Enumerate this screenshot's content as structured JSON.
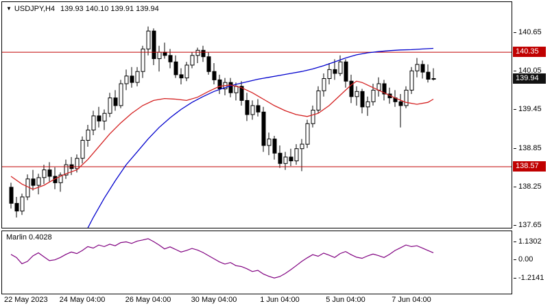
{
  "header": {
    "marker": "▼",
    "symbol_period": "USDJPY,H4",
    "ohlc": "139.93 140.10 139.91 139.94"
  },
  "indicator_header": {
    "name": "Marlin",
    "value": "0.4028"
  },
  "chart_data": {
    "type": "candlestick",
    "symbol": "USDJPY",
    "timeframe": "H4",
    "style": {
      "bull_color": "#ffffff",
      "bear_color": "#000000",
      "wick_color": "#000000",
      "level_color": "#c00000",
      "level_badge_bg": "#c00000",
      "price_badge_bg": "#111111",
      "ma_fast_color": "#d42020",
      "ma_slow_color": "#0000cd",
      "indicator_color": "#800080"
    },
    "y_axis": {
      "min": 137.62,
      "max": 141.13,
      "ticks": [
        140.65,
        140.05,
        139.45,
        138.85,
        138.25,
        137.65
      ]
    },
    "x_ticks": [
      {
        "i": 0,
        "label": "22 May 2023"
      },
      {
        "i": 13,
        "label": "24 May 04:00"
      },
      {
        "i": 25,
        "label": "26 May 04:00"
      },
      {
        "i": 37,
        "label": "30 May 04:00"
      },
      {
        "i": 49,
        "label": "1 Jun 04:00"
      },
      {
        "i": 61,
        "label": "5 Jun 04:00"
      },
      {
        "i": 73,
        "label": "7 Jun 04:00"
      }
    ],
    "levels": [
      {
        "price": 140.35,
        "label": "140.35"
      },
      {
        "price": 138.57,
        "label": "138.57"
      }
    ],
    "current_price": {
      "value": 139.94,
      "label": "139.94"
    },
    "candles": [
      [
        138.25,
        138.32,
        137.92,
        138.0
      ],
      [
        138.0,
        138.1,
        137.78,
        137.88
      ],
      [
        137.88,
        138.15,
        137.82,
        138.1
      ],
      [
        138.1,
        138.45,
        138.05,
        138.38
      ],
      [
        138.38,
        138.52,
        138.2,
        138.28
      ],
      [
        138.28,
        138.46,
        138.14,
        138.4
      ],
      [
        138.4,
        138.6,
        138.3,
        138.52
      ],
      [
        138.52,
        138.64,
        138.34,
        138.42
      ],
      [
        138.42,
        138.56,
        138.22,
        138.32
      ],
      [
        138.32,
        138.48,
        138.18,
        138.44
      ],
      [
        138.44,
        138.68,
        138.38,
        138.6
      ],
      [
        138.6,
        138.72,
        138.44,
        138.54
      ],
      [
        138.54,
        138.76,
        138.48,
        138.7
      ],
      [
        138.7,
        139.04,
        138.62,
        138.98
      ],
      [
        138.98,
        139.22,
        138.88,
        139.14
      ],
      [
        139.14,
        139.44,
        139.06,
        139.36
      ],
      [
        139.36,
        139.5,
        139.18,
        139.28
      ],
      [
        139.28,
        139.46,
        139.14,
        139.4
      ],
      [
        139.4,
        139.72,
        139.34,
        139.64
      ],
      [
        139.64,
        139.76,
        139.44,
        139.52
      ],
      [
        139.52,
        139.92,
        139.48,
        139.86
      ],
      [
        139.86,
        140.08,
        139.76,
        139.98
      ],
      [
        139.98,
        140.12,
        139.8,
        139.88
      ],
      [
        139.88,
        140.12,
        139.82,
        140.05
      ],
      [
        140.05,
        140.45,
        139.95,
        140.4
      ],
      [
        140.4,
        140.75,
        140.3,
        140.68
      ],
      [
        140.68,
        140.72,
        140.15,
        140.25
      ],
      [
        140.25,
        140.45,
        140.05,
        140.35
      ],
      [
        140.35,
        140.5,
        140.25,
        140.3
      ],
      [
        140.3,
        140.4,
        140.1,
        140.2
      ],
      [
        140.2,
        140.3,
        139.95,
        140.0
      ],
      [
        140.0,
        140.1,
        139.85,
        139.95
      ],
      [
        139.95,
        140.2,
        139.9,
        140.15
      ],
      [
        140.15,
        140.35,
        140.1,
        140.3
      ],
      [
        140.3,
        140.42,
        140.18,
        140.38
      ],
      [
        140.38,
        140.45,
        140.2,
        140.28
      ],
      [
        140.28,
        140.35,
        140.0,
        140.05
      ],
      [
        140.05,
        140.18,
        139.85,
        139.92
      ],
      [
        139.92,
        140.0,
        139.7,
        139.78
      ],
      [
        139.78,
        139.95,
        139.68,
        139.88
      ],
      [
        139.88,
        139.95,
        139.65,
        139.72
      ],
      [
        139.72,
        139.88,
        139.6,
        139.82
      ],
      [
        139.82,
        139.9,
        139.52,
        139.6
      ],
      [
        139.6,
        139.72,
        139.28,
        139.38
      ],
      [
        139.38,
        139.6,
        139.3,
        139.52
      ],
      [
        139.52,
        139.62,
        139.35,
        139.42
      ],
      [
        139.42,
        139.5,
        138.8,
        138.9
      ],
      [
        138.9,
        139.1,
        138.75,
        139.0
      ],
      [
        139.0,
        139.05,
        138.68,
        138.78
      ],
      [
        138.78,
        138.9,
        138.55,
        138.62
      ],
      [
        138.62,
        138.8,
        138.52,
        138.72
      ],
      [
        138.72,
        138.85,
        138.58,
        138.66
      ],
      [
        138.66,
        138.92,
        138.6,
        138.85
      ],
      [
        138.85,
        139.0,
        138.5,
        138.92
      ],
      [
        138.92,
        139.3,
        138.86,
        139.24
      ],
      [
        139.24,
        139.52,
        139.18,
        139.45
      ],
      [
        139.45,
        139.82,
        139.4,
        139.75
      ],
      [
        139.75,
        140.02,
        139.66,
        139.94
      ],
      [
        139.94,
        140.18,
        139.85,
        140.08
      ],
      [
        140.08,
        140.24,
        139.92,
        140.02
      ],
      [
        140.02,
        140.3,
        139.98,
        140.2
      ],
      [
        140.2,
        140.24,
        139.8,
        139.9
      ],
      [
        139.9,
        140.0,
        139.56,
        139.66
      ],
      [
        139.66,
        139.82,
        139.52,
        139.74
      ],
      [
        139.74,
        139.78,
        139.4,
        139.5
      ],
      [
        139.5,
        139.66,
        139.36,
        139.58
      ],
      [
        139.58,
        139.86,
        139.52,
        139.76
      ],
      [
        139.76,
        139.96,
        139.66,
        139.86
      ],
      [
        139.86,
        139.92,
        139.6,
        139.7
      ],
      [
        139.7,
        139.8,
        139.55,
        139.64
      ],
      [
        139.64,
        139.76,
        139.5,
        139.58
      ],
      [
        139.58,
        139.7,
        139.18,
        139.52
      ],
      [
        139.52,
        139.82,
        139.48,
        139.76
      ],
      [
        139.76,
        140.12,
        139.7,
        140.06
      ],
      [
        140.06,
        140.26,
        139.96,
        140.16
      ],
      [
        140.16,
        140.22,
        139.94,
        140.04
      ],
      [
        140.04,
        140.16,
        139.88,
        139.93
      ],
      [
        139.93,
        140.1,
        139.91,
        139.94
      ]
    ],
    "ma_fast": {
      "name": "MA fast (red)",
      "points": [
        [
          0,
          138.42
        ],
        [
          2,
          138.3
        ],
        [
          4,
          138.22
        ],
        [
          6,
          138.28
        ],
        [
          8,
          138.38
        ],
        [
          10,
          138.46
        ],
        [
          12,
          138.52
        ],
        [
          14,
          138.68
        ],
        [
          16,
          138.88
        ],
        [
          18,
          139.08
        ],
        [
          20,
          139.25
        ],
        [
          22,
          139.4
        ],
        [
          24,
          139.52
        ],
        [
          26,
          139.6
        ],
        [
          28,
          139.63
        ],
        [
          30,
          139.62
        ],
        [
          32,
          139.6
        ],
        [
          34,
          139.65
        ],
        [
          36,
          139.74
        ],
        [
          38,
          139.82
        ],
        [
          40,
          139.84
        ],
        [
          42,
          139.8
        ],
        [
          44,
          139.72
        ],
        [
          46,
          139.62
        ],
        [
          48,
          139.52
        ],
        [
          50,
          139.44
        ],
        [
          52,
          139.38
        ],
        [
          54,
          139.35
        ],
        [
          56,
          139.4
        ],
        [
          58,
          139.52
        ],
        [
          60,
          139.68
        ],
        [
          62,
          139.84
        ],
        [
          63,
          139.9
        ],
        [
          64,
          139.88
        ],
        [
          66,
          139.8
        ],
        [
          68,
          139.72
        ],
        [
          70,
          139.64
        ],
        [
          72,
          139.57
        ],
        [
          74,
          139.54
        ],
        [
          76,
          139.57
        ],
        [
          77,
          139.62
        ]
      ]
    },
    "ma_slow": {
      "name": "MA slow (blue)",
      "points": [
        [
          13,
          137.45
        ],
        [
          15,
          137.78
        ],
        [
          17,
          138.08
        ],
        [
          19,
          138.35
        ],
        [
          21,
          138.6
        ],
        [
          23,
          138.8
        ],
        [
          25,
          139.0
        ],
        [
          27,
          139.18
        ],
        [
          29,
          139.33
        ],
        [
          31,
          139.46
        ],
        [
          33,
          139.57
        ],
        [
          35,
          139.66
        ],
        [
          37,
          139.74
        ],
        [
          39,
          139.8
        ],
        [
          41,
          139.85
        ],
        [
          43,
          139.89
        ],
        [
          45,
          139.93
        ],
        [
          47,
          139.96
        ],
        [
          49,
          139.99
        ],
        [
          51,
          140.02
        ],
        [
          53,
          140.05
        ],
        [
          55,
          140.09
        ],
        [
          57,
          140.14
        ],
        [
          59,
          140.2
        ],
        [
          61,
          140.26
        ],
        [
          63,
          140.31
        ],
        [
          65,
          140.34
        ],
        [
          67,
          140.36
        ],
        [
          69,
          140.375
        ],
        [
          71,
          140.385
        ],
        [
          73,
          140.39
        ],
        [
          75,
          140.4
        ],
        [
          77,
          140.41
        ]
      ]
    },
    "indicator": {
      "name": "Marlin",
      "current_value": 0.4028,
      "y_axis": {
        "min": -2.21,
        "max": 1.78,
        "ticks": [
          {
            "v": 1.1302,
            "label": "1.1302"
          },
          {
            "v": 0,
            "label": "0.00"
          },
          {
            "v": -1.2141,
            "label": "-1.2141"
          }
        ]
      },
      "values": [
        0.3,
        0.1,
        -0.3,
        -0.15,
        0.2,
        0.4,
        0.15,
        -0.1,
        -0.05,
        0.1,
        0.3,
        0.45,
        0.35,
        0.55,
        0.8,
        0.7,
        0.9,
        0.8,
        0.95,
        0.85,
        1.05,
        1.1,
        1.0,
        1.15,
        1.22,
        1.3,
        1.12,
        0.9,
        0.65,
        0.78,
        0.62,
        0.45,
        0.55,
        0.68,
        0.58,
        0.42,
        0.22,
        0.02,
        -0.18,
        -0.32,
        -0.22,
        -0.42,
        -0.48,
        -0.62,
        -0.8,
        -0.72,
        -0.95,
        -1.1,
        -1.21,
        -1.12,
        -0.92,
        -0.68,
        -0.42,
        -0.15,
        0.08,
        0.28,
        0.18,
        0.38,
        0.25,
        0.1,
        0.35,
        0.48,
        0.28,
        0.12,
        0.05,
        0.2,
        0.32,
        0.22,
        0.1,
        0.3,
        0.55,
        0.72,
        0.9,
        0.8,
        0.85,
        0.7,
        0.55,
        0.4028
      ]
    }
  }
}
